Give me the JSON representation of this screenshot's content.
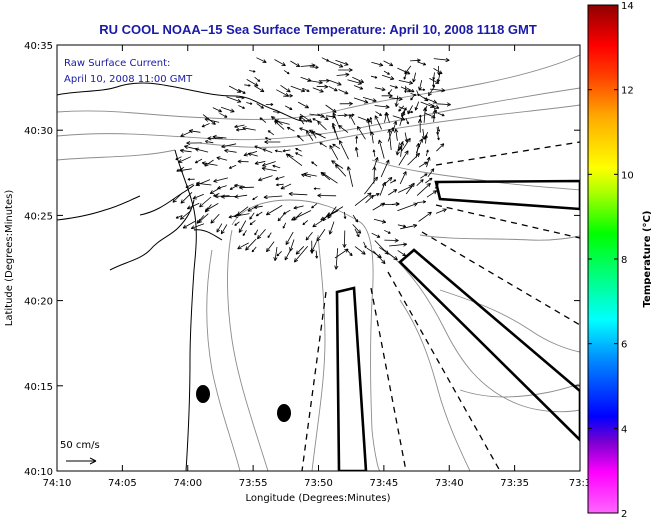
{
  "title": "RU COOL  NOAA–15  Sea Surface Temperature:  April 10, 2008 1118 GMT",
  "legend": {
    "line1": "Raw Surface Current:",
    "line2": "April 10, 2008 11:00 GMT"
  },
  "scale_label": "50 cm/s",
  "y_axis": {
    "label": "Latitude (Degrees:Minutes)",
    "ticks": [
      "40:35",
      "40:30",
      "40:25",
      "40:20",
      "40:15",
      "40:10"
    ]
  },
  "x_axis": {
    "label": "Longitude (Degrees:Minutes)",
    "ticks": [
      "74:10",
      "74:05",
      "74:00",
      "73:55",
      "73:50",
      "73:45",
      "73:40",
      "73:35",
      "73:3"
    ]
  },
  "colorbar": {
    "label": "Temperature (°C)",
    "ticks": [
      "14",
      "12",
      "10",
      "8",
      "6",
      "4",
      "2"
    ],
    "colors": [
      "#8b0000",
      "#ff0000",
      "#ff8000",
      "#ffff00",
      "#80ff00",
      "#00ff00",
      "#00ff80",
      "#00ffff",
      "#0080ff",
      "#0000ff",
      "#4000c0",
      "#8000ff",
      "#ff00ff",
      "#ff80ff"
    ]
  },
  "colors": {
    "title": "#1a1aa8",
    "contour": "#8c8c8c",
    "coast": "#000000"
  }
}
